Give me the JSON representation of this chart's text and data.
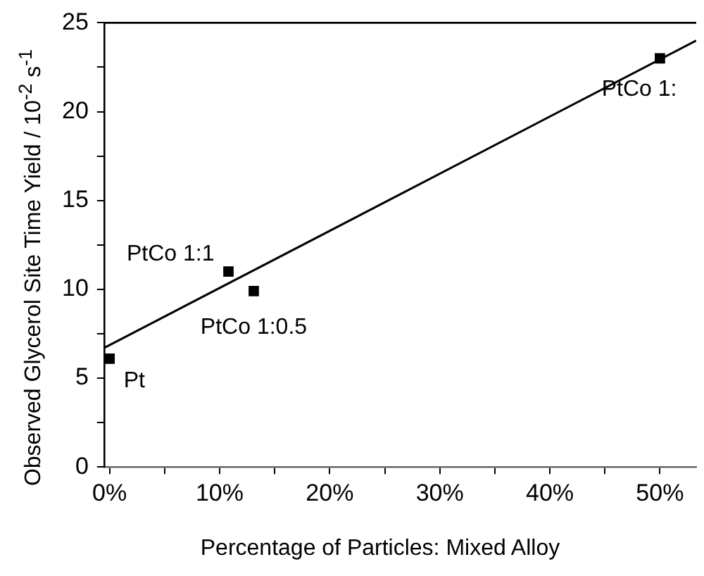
{
  "chart_data": {
    "type": "scatter",
    "xlabel": "Percentage of Particles: Mixed Alloy",
    "ylabel": "Observed Glycerol Site Time Yield / 10$^{-2}$ s$^{-1}$",
    "series": [
      {
        "color": "#000000",
        "marker": "square",
        "x": [
          0,
          10.8,
          13.1,
          50
        ],
        "values": [
          6.1,
          11.0,
          9.9,
          23.0
        ]
      },
      {
        "type": "line",
        "color": "#000000",
        "marker": "none",
        "line_style": "solid",
        "x": [
          -0.5,
          53.3
        ],
        "values": [
          6.7,
          24.0
        ]
      }
    ],
    "annotations": [
      {
        "text": "Pt",
        "x": 0,
        "y": 6.1
      },
      {
        "text": "PtCo 1:1",
        "x": 10.8,
        "y": 11.0
      },
      {
        "text": "PtCo 1:0.5",
        "x": 13.1,
        "y": 9.9
      },
      {
        "text": "PtCo 1:",
        "x": 50,
        "y": 23.0
      }
    ],
    "xlim": [
      -0.5,
      53.3
    ],
    "ylim": [
      0,
      25
    ],
    "xticks": [
      {
        "value": 0,
        "label": "0%"
      },
      {
        "value": 5,
        "label": null
      },
      {
        "value": 10,
        "label": "10%"
      },
      {
        "value": 15,
        "label": null
      },
      {
        "value": 20,
        "label": "20%"
      },
      {
        "value": 25,
        "label": null
      },
      {
        "value": 30,
        "label": "30%"
      },
      {
        "value": 35,
        "label": null
      },
      {
        "value": 40,
        "label": "40%"
      },
      {
        "value": 45,
        "label": null
      },
      {
        "value": 50,
        "label": "50%"
      }
    ],
    "yticks": [
      0,
      {
        "value": 2.5,
        "label": null
      },
      5,
      {
        "value": 7.5,
        "label": null
      },
      10,
      {
        "value": 12.5,
        "label": null
      },
      15,
      {
        "value": 17.5,
        "label": null
      },
      20,
      {
        "value": 22.5,
        "label": null
      },
      25
    ],
    "grid": false,
    "legend": false
  }
}
